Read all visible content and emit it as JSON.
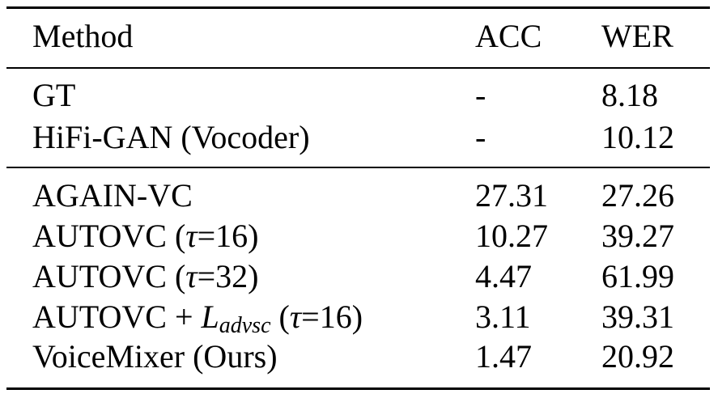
{
  "table": {
    "header": [
      "Method",
      "ACC",
      "WER"
    ],
    "rows": [
      [
        "GT",
        "-",
        "8.18"
      ],
      [
        "HiFi-GAN (Vocoder)",
        "-",
        "10.12"
      ],
      [
        "AGAIN-VC",
        "27.31",
        "27.26"
      ],
      [
        [
          "AUTOVC (",
          "τ",
          "=16)"
        ],
        "10.27",
        "39.27"
      ],
      [
        [
          "AUTOVC (",
          "τ",
          "=32)"
        ],
        "4.47",
        "61.99"
      ],
      [
        [
          "AUTOVC + ",
          "L",
          "advsc",
          " (",
          "τ",
          "=16)"
        ],
        "3.11",
        "39.31"
      ],
      [
        "VoiceMixer (Ours)",
        "1.47",
        "20.92"
      ]
    ]
  }
}
